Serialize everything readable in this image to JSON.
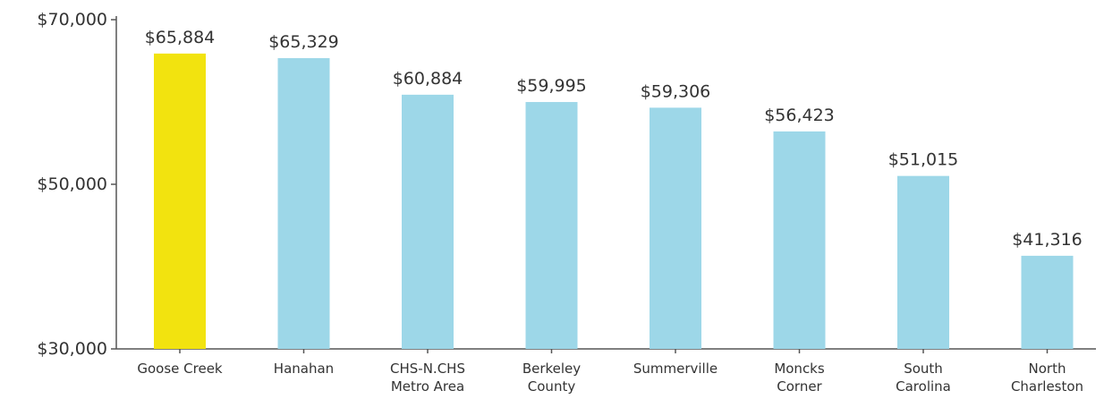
{
  "chart_data": {
    "type": "bar",
    "categories": [
      [
        "Goose Creek"
      ],
      [
        "Hanahan"
      ],
      [
        "CHS-N.CHS",
        "Metro Area"
      ],
      [
        "Berkeley",
        "County"
      ],
      [
        "Summerville"
      ],
      [
        "Moncks",
        "Corner"
      ],
      [
        "South",
        "Carolina"
      ],
      [
        "North",
        "Charleston"
      ]
    ],
    "values": [
      65884,
      65329,
      60884,
      59995,
      59306,
      56423,
      51015,
      41316
    ],
    "value_labels": [
      "$65,884",
      "$65,329",
      "$60,884",
      "$59,995",
      "$59,306",
      "$56,423",
      "$51,015",
      "$41,316"
    ],
    "y_ticks": [
      {
        "value": 30000,
        "label": "$30,000"
      },
      {
        "value": 50000,
        "label": "$50,000"
      },
      {
        "value": 70000,
        "label": "$70,000"
      }
    ],
    "ylim": [
      30000,
      70000
    ],
    "grid": false,
    "legend": "none",
    "highlight_index": 0,
    "colors": {
      "highlight": "#F2E30F",
      "default": "#9DD7E8",
      "axis": "#555555",
      "text": "#333333"
    }
  }
}
